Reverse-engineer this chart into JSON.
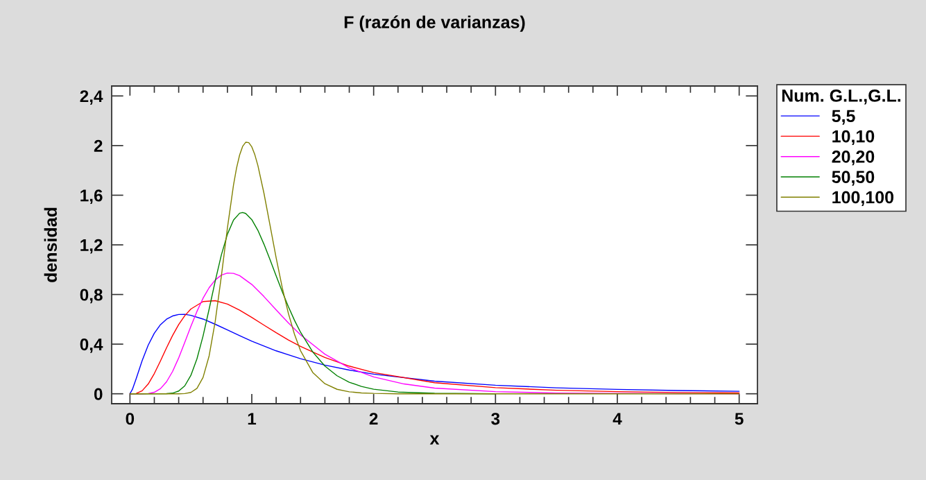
{
  "chart_data": {
    "type": "line",
    "title": "F (razón de varianzas)",
    "xlabel": "x",
    "ylabel": "densidad",
    "legend_title": "Num. G.L.,G.L.",
    "legend": "top right",
    "line_style": "solid",
    "xlim": [
      -0.15,
      5.15
    ],
    "ylim": [
      -0.08,
      2.48
    ],
    "xticks": [
      0,
      {
        "value": 0.2,
        "label": null
      },
      {
        "value": 0.4,
        "label": null
      },
      {
        "value": 0.6,
        "label": null
      },
      {
        "value": 0.8,
        "label": null
      },
      1,
      {
        "value": 1.2,
        "label": null
      },
      {
        "value": 1.4,
        "label": null
      },
      {
        "value": 1.6,
        "label": null
      },
      {
        "value": 1.8,
        "label": null
      },
      2,
      {
        "value": 2.2,
        "label": null
      },
      {
        "value": 2.4,
        "label": null
      },
      {
        "value": 2.6,
        "label": null
      },
      {
        "value": 2.8,
        "label": null
      },
      3,
      {
        "value": 3.2,
        "label": null
      },
      {
        "value": 3.4,
        "label": null
      },
      {
        "value": 3.6,
        "label": null
      },
      {
        "value": 3.8,
        "label": null
      },
      4,
      {
        "value": 4.2,
        "label": null
      },
      {
        "value": 4.4,
        "label": null
      },
      {
        "value": 4.6,
        "label": null
      },
      {
        "value": 4.8,
        "label": null
      },
      5
    ],
    "yticks": [
      0,
      {
        "value": 0.4,
        "label": "0,4"
      },
      {
        "value": 0.8,
        "label": "0,8"
      },
      {
        "value": 1.2,
        "label": "1,2"
      },
      {
        "value": 1.6,
        "label": "1,6"
      },
      2,
      {
        "value": 2.4,
        "label": "2,4"
      }
    ],
    "series": [
      {
        "name": "5,5",
        "color": "#0000ff",
        "x": [
          0,
          0.02,
          0.05,
          0.1,
          0.15,
          0.2,
          0.25,
          0.3,
          0.35,
          0.4,
          0.45,
          0.5,
          0.6,
          0.7,
          0.8,
          0.9,
          1.0,
          1.2,
          1.4,
          1.6,
          1.8,
          2.0,
          2.5,
          3.0,
          3.5,
          4.0,
          4.5,
          5.0
        ],
        "values": [
          0,
          0.035,
          0.119,
          0.267,
          0.392,
          0.488,
          0.556,
          0.601,
          0.627,
          0.639,
          0.64,
          0.632,
          0.602,
          0.56,
          0.514,
          0.468,
          0.424,
          0.346,
          0.283,
          0.231,
          0.191,
          0.158,
          0.102,
          0.069,
          0.048,
          0.035,
          0.026,
          0.02
        ]
      },
      {
        "name": "10,10",
        "color": "#ff0000",
        "x": [
          0,
          0.05,
          0.1,
          0.15,
          0.2,
          0.25,
          0.3,
          0.35,
          0.4,
          0.45,
          0.5,
          0.6,
          0.7,
          0.8,
          0.9,
          1.0,
          1.1,
          1.2,
          1.3,
          1.4,
          1.6,
          1.8,
          2.0,
          2.5,
          3.0,
          3.5,
          4.0,
          4.5,
          5.0
        ],
        "values": [
          0,
          0.002,
          0.024,
          0.079,
          0.163,
          0.264,
          0.37,
          0.47,
          0.558,
          0.629,
          0.683,
          0.743,
          0.75,
          0.723,
          0.674,
          0.615,
          0.553,
          0.492,
          0.434,
          0.382,
          0.292,
          0.223,
          0.171,
          0.089,
          0.049,
          0.028,
          0.017,
          0.01,
          0.007
        ]
      },
      {
        "name": "20,20",
        "color": "#ff00ff",
        "x": [
          0,
          0.1,
          0.15,
          0.2,
          0.25,
          0.3,
          0.35,
          0.4,
          0.45,
          0.5,
          0.55,
          0.6,
          0.65,
          0.7,
          0.75,
          0.8,
          0.85,
          0.9,
          1.0,
          1.1,
          1.2,
          1.3,
          1.4,
          1.6,
          1.8,
          2.0,
          2.25,
          2.5,
          3.0,
          3.5,
          4.0,
          4.5,
          5.0
        ],
        "values": [
          0,
          0,
          0.002,
          0.012,
          0.041,
          0.096,
          0.18,
          0.289,
          0.414,
          0.543,
          0.664,
          0.77,
          0.855,
          0.917,
          0.956,
          0.973,
          0.97,
          0.952,
          0.881,
          0.783,
          0.676,
          0.571,
          0.475,
          0.319,
          0.209,
          0.136,
          0.079,
          0.046,
          0.017,
          0.006,
          0.003,
          0.001,
          0
        ]
      },
      {
        "name": "50,50",
        "color": "#008000",
        "x": [
          0,
          0.3,
          0.35,
          0.4,
          0.45,
          0.5,
          0.55,
          0.6,
          0.65,
          0.7,
          0.75,
          0.8,
          0.85,
          0.9,
          0.925,
          0.95,
          1.0,
          1.05,
          1.1,
          1.15,
          1.2,
          1.25,
          1.3,
          1.35,
          1.4,
          1.5,
          1.6,
          1.7,
          1.8,
          1.9,
          2.0,
          2.2,
          2.5,
          3.0
        ],
        "values": [
          0,
          0.001,
          0.005,
          0.022,
          0.064,
          0.148,
          0.282,
          0.466,
          0.683,
          0.909,
          1.118,
          1.286,
          1.4,
          1.455,
          1.461,
          1.453,
          1.403,
          1.317,
          1.205,
          1.08,
          0.95,
          0.823,
          0.703,
          0.593,
          0.496,
          0.337,
          0.223,
          0.145,
          0.093,
          0.059,
          0.037,
          0.014,
          0.004,
          0
        ]
      },
      {
        "name": "100,100",
        "color": "#808000",
        "x": [
          0,
          0.4,
          0.45,
          0.5,
          0.55,
          0.6,
          0.65,
          0.7,
          0.75,
          0.8,
          0.85,
          0.875,
          0.9,
          0.925,
          0.95,
          0.975,
          1.0,
          1.025,
          1.05,
          1.1,
          1.15,
          1.2,
          1.25,
          1.3,
          1.35,
          1.4,
          1.5,
          1.6,
          1.7,
          1.8,
          1.9,
          2.0,
          2.2,
          2.5,
          5.0
        ],
        "values": [
          0,
          0,
          0.002,
          0.011,
          0.044,
          0.132,
          0.306,
          0.584,
          0.946,
          1.336,
          1.683,
          1.82,
          1.924,
          1.994,
          2.027,
          2.024,
          1.99,
          1.926,
          1.839,
          1.615,
          1.356,
          1.095,
          0.855,
          0.649,
          0.48,
          0.347,
          0.172,
          0.081,
          0.036,
          0.016,
          0.007,
          0.003,
          0,
          0,
          0
        ]
      }
    ]
  }
}
